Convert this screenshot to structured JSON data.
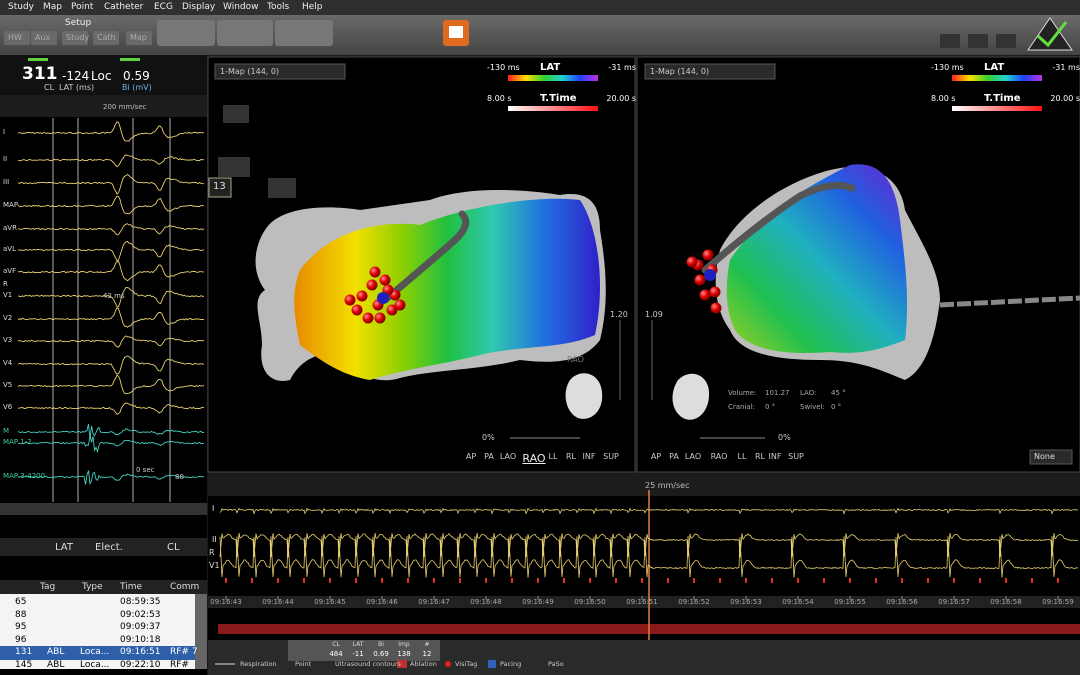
{
  "menu": [
    "Study",
    "Map",
    "Point",
    "Catheter",
    "ECG",
    "Display",
    "Window",
    "Tools",
    "Help"
  ],
  "toolbar": {
    "setup": "Setup",
    "buttons": [
      "HW",
      "Aux",
      "Study",
      "Cath",
      "Map"
    ]
  },
  "status": {
    "cl": "311",
    "cl_label": "CL",
    "lat": "-124",
    "lat_label": "LAT (ms)",
    "loc": "Loc",
    "bi": "0.59",
    "bi_label": "Bi (mV)"
  },
  "signals": {
    "speed": "200 mm/sec",
    "leads": [
      "I",
      "II",
      "III",
      "MAP",
      "aVR",
      "aVL",
      "aVF",
      "R",
      "V1",
      "V2",
      "V3",
      "V4",
      "V5",
      "V6",
      "M",
      "MAP 1-2",
      "MAP 3-4200"
    ],
    "annotations": [
      "42 ms",
      "0 sec",
      "80"
    ]
  },
  "points": {
    "headers": [
      "LAT",
      "Elect.",
      "CL"
    ]
  },
  "tags": {
    "headers": [
      "Tag",
      "Type",
      "Time",
      "Comm"
    ],
    "rows": [
      {
        "id": "65",
        "time": "08:59:35"
      },
      {
        "id": "88",
        "time": "09:02:53"
      },
      {
        "id": "95",
        "time": "09:09:37"
      },
      {
        "id": "96",
        "time": "09:10:18"
      },
      {
        "id": "131",
        "tag": "ABL",
        "type": "Loca...",
        "time": "09:16:51",
        "comment": "RF# 7"
      },
      {
        "id": "145",
        "tag": "ABL",
        "type": "Loca...",
        "time": "09:22:10",
        "comment": "RF#"
      }
    ]
  },
  "maps": [
    {
      "dropdown": "1-Map (144, 0)",
      "lat": {
        "min": "-130 ms",
        "label": "LAT",
        "max": "-31 ms"
      },
      "ttime": {
        "min": "8.00 s",
        "label": "T.Time",
        "max": "20.00 s"
      },
      "point_count": "13",
      "zoom": "1.20",
      "view": "RAO",
      "opacity": "0%",
      "views": [
        "AP",
        "PA",
        "LAO",
        "RAO",
        "LL",
        "RL",
        "INF",
        "SUP"
      ]
    },
    {
      "dropdown": "1-Map (144, 0)",
      "lat": {
        "min": "-130 ms",
        "label": "LAT",
        "max": "-31 ms"
      },
      "ttime": {
        "min": "8.00 s",
        "label": "T.Time",
        "max": "20.00 s"
      },
      "zoom": "1.09",
      "opacity": "0%",
      "views": [
        "AP",
        "PA",
        "LAO",
        "RAO",
        "LL",
        "RL",
        "INF",
        "SUP"
      ],
      "info": [
        {
          "label": "Volume:",
          "value": "101.27"
        },
        {
          "label": "LAO:",
          "value": "45 °"
        },
        {
          "label": "Cranial:",
          "value": "0 °"
        },
        {
          "label": "Swivel:",
          "value": "0 °"
        }
      ],
      "display": "None"
    }
  ],
  "strip": {
    "speed": "25 mm/sec",
    "leads": [
      "I",
      "II",
      "R",
      "V1"
    ],
    "times": [
      "09:16:43",
      "09:16:44",
      "09:16:45",
      "09:16:46",
      "09:16:47",
      "09:16:48",
      "09:16:49",
      "09:16:50",
      "09:16:51",
      "09:16:52",
      "09:16:53",
      "09:16:54",
      "09:16:55",
      "09:16:56",
      "09:16:57",
      "09:16:58",
      "09:16:59"
    ]
  },
  "readout": {
    "headers": [
      "CL",
      "LAT",
      "Bi",
      "Imp",
      "#"
    ],
    "values": [
      "484",
      "-11",
      "0.69",
      "138",
      "12"
    ]
  },
  "legend": [
    "Respiration",
    "Point",
    "Ultrasound contours",
    "Ablation",
    "VisiTag",
    "Pacing",
    "PaSo"
  ]
}
